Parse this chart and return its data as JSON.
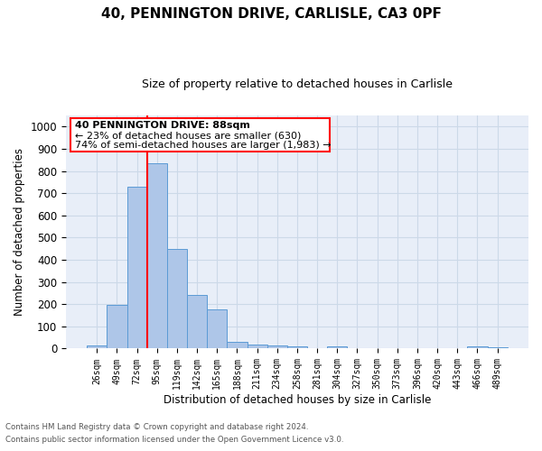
{
  "title1": "40, PENNINGTON DRIVE, CARLISLE, CA3 0PF",
  "title2": "Size of property relative to detached houses in Carlisle",
  "xlabel": "Distribution of detached houses by size in Carlisle",
  "ylabel": "Number of detached properties",
  "footnote1": "Contains HM Land Registry data © Crown copyright and database right 2024.",
  "footnote2": "Contains public sector information licensed under the Open Government Licence v3.0.",
  "bar_labels": [
    "26sqm",
    "49sqm",
    "72sqm",
    "95sqm",
    "119sqm",
    "142sqm",
    "165sqm",
    "188sqm",
    "211sqm",
    "234sqm",
    "258sqm",
    "281sqm",
    "304sqm",
    "327sqm",
    "350sqm",
    "373sqm",
    "396sqm",
    "420sqm",
    "443sqm",
    "466sqm",
    "489sqm"
  ],
  "bar_values": [
    15,
    195,
    730,
    835,
    450,
    240,
    175,
    30,
    20,
    15,
    10,
    0,
    10,
    0,
    0,
    0,
    0,
    0,
    0,
    10,
    8
  ],
  "bar_color": "#aec6e8",
  "bar_edge_color": "#5b9bd5",
  "vline_color": "red",
  "ylim": [
    0,
    1050
  ],
  "yticks": [
    0,
    100,
    200,
    300,
    400,
    500,
    600,
    700,
    800,
    900,
    1000
  ],
  "annotation_box_text_line1": "40 PENNINGTON DRIVE: 88sqm",
  "annotation_box_text_line2": "← 23% of detached houses are smaller (630)",
  "annotation_box_text_line3": "74% of semi-detached houses are larger (1,983) →",
  "grid_color": "#ccd9e8",
  "background_color": "#e8eef8"
}
